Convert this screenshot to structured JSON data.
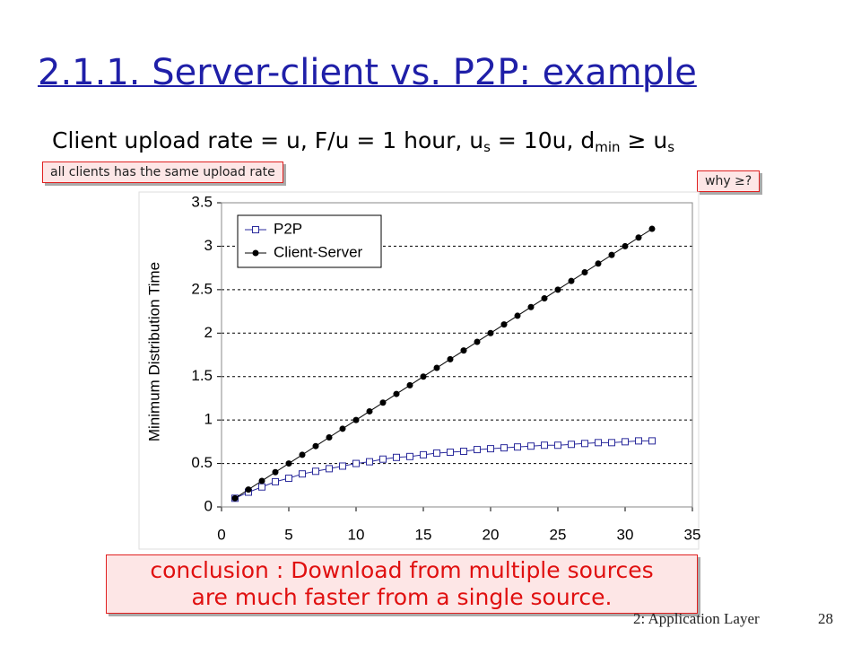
{
  "header": {
    "title": "2.1.1. Server-client vs. P2P: example",
    "subtitle": [
      {
        "text": "Client upload rate = u,  F/u = 1 hour,  u"
      },
      {
        "sub": "s"
      },
      {
        "text": " = 10u,  d"
      },
      {
        "sub": "min"
      },
      {
        "text": " ≥ u"
      },
      {
        "sub": "s"
      }
    ]
  },
  "notes": [
    "all clients has the same upload rate",
    "why ≥?"
  ],
  "conclusion": [
    "conclusion : Download from multiple sources",
    "are much faster from a single source."
  ],
  "footer": {
    "section": "2: Application Layer",
    "page": "28"
  },
  "chart_data": {
    "type": "line",
    "y_label": "Minimum Distribution Time",
    "x": [
      1,
      2,
      3,
      4,
      5,
      6,
      7,
      8,
      9,
      10,
      11,
      12,
      13,
      14,
      15,
      16,
      17,
      18,
      19,
      20,
      21,
      22,
      23,
      24,
      25,
      26,
      27,
      28,
      29,
      30,
      31,
      32
    ],
    "series": [
      {
        "name": "P2P",
        "color": "#2b2b9c",
        "marker": "square",
        "values": [
          0.1,
          0.17,
          0.23,
          0.29,
          0.33,
          0.38,
          0.41,
          0.44,
          0.47,
          0.5,
          0.52,
          0.55,
          0.57,
          0.58,
          0.6,
          0.62,
          0.63,
          0.64,
          0.66,
          0.67,
          0.68,
          0.69,
          0.7,
          0.71,
          0.71,
          0.72,
          0.73,
          0.74,
          0.74,
          0.75,
          0.76,
          0.76
        ]
      },
      {
        "name": "Client-Server",
        "color": "#000000",
        "marker": "circle",
        "values": [
          0.1,
          0.2,
          0.3,
          0.4,
          0.5,
          0.6,
          0.7,
          0.8,
          0.9,
          1,
          1.1,
          1.2,
          1.3,
          1.4,
          1.5,
          1.6,
          1.7,
          1.8,
          1.9,
          2,
          2.1,
          2.2,
          2.3,
          2.4,
          2.5,
          2.6,
          2.7,
          2.8,
          2.9,
          3,
          3.1,
          3.2
        ]
      }
    ],
    "xlim": [
      0,
      35
    ],
    "xticks": [
      0,
      5,
      10,
      15,
      20,
      25,
      30,
      35
    ],
    "ylim": [
      0,
      3.5
    ],
    "yticks": [
      0,
      0.5,
      1,
      1.5,
      2,
      2.5,
      3,
      3.5
    ],
    "grid": true,
    "legend": "top-left"
  }
}
